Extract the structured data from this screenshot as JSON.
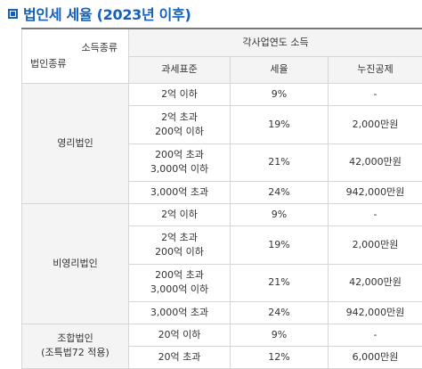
{
  "title": "법인세 세율 (2023년 이후)",
  "header": {
    "corner_top": "소득종류",
    "corner_bottom": "법인종류",
    "group": "각사업연도 소득",
    "cols": [
      "과세표준",
      "세율",
      "누진공제"
    ]
  },
  "groups": [
    {
      "name_lines": [
        "영리법인"
      ],
      "rows": [
        {
          "base": [
            "2억 이하"
          ],
          "rate": "9%",
          "deduction": "-"
        },
        {
          "base": [
            "2억 초과",
            "200억 이하"
          ],
          "rate": "19%",
          "deduction": "2,000만원"
        },
        {
          "base": [
            "200억 초과",
            "3,000억 이하"
          ],
          "rate": "21%",
          "deduction": "42,000만원"
        },
        {
          "base": [
            "3,000억 초과"
          ],
          "rate": "24%",
          "deduction": "942,000만원"
        }
      ]
    },
    {
      "name_lines": [
        "비영리법인"
      ],
      "rows": [
        {
          "base": [
            "2억 이하"
          ],
          "rate": "9%",
          "deduction": "-"
        },
        {
          "base": [
            "2억 초과",
            "200억 이하"
          ],
          "rate": "19%",
          "deduction": "2,000만원"
        },
        {
          "base": [
            "200억 초과",
            "3,000억 이하"
          ],
          "rate": "21%",
          "deduction": "42,000만원"
        },
        {
          "base": [
            "3,000억 초과"
          ],
          "rate": "24%",
          "deduction": "942,000만원"
        }
      ]
    },
    {
      "name_lines": [
        "조합법인",
        "(조특법72 적용)"
      ],
      "rows": [
        {
          "base": [
            "20억 이하"
          ],
          "rate": "9%",
          "deduction": "-"
        },
        {
          "base": [
            "20억 초과"
          ],
          "rate": "12%",
          "deduction": "6,000만원"
        }
      ]
    }
  ]
}
